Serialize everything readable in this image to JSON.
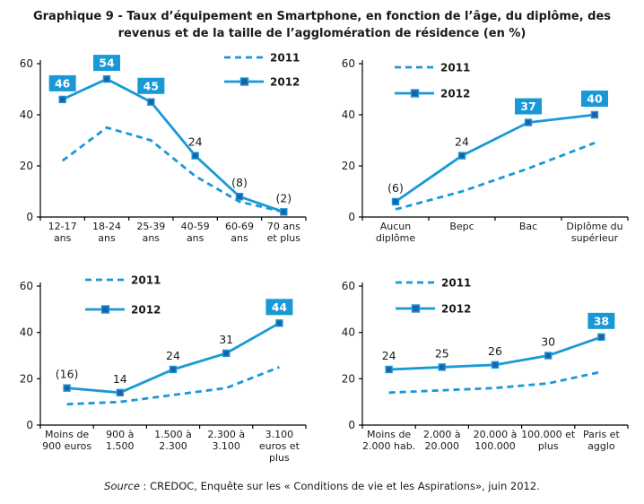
{
  "title": {
    "line1": "Graphique 9 - Taux d’équipement en Smartphone, en fonction de l’âge, du diplôme, des",
    "line2": "revenus et de la taille de l’agglomération de résidence (en %)"
  },
  "source": {
    "label": "Source",
    "text": " : CREDOC, Enquête sur les « Conditions de vie et les Aspirations», juin 2012."
  },
  "colors": {
    "accent": "#1899d6",
    "marker_fill": "#1f5fa8",
    "box_text": "#ffffff",
    "axis": "#000000",
    "text": "#1a1a1a"
  },
  "legend_labels": [
    "2011",
    "2012"
  ],
  "chart_data": [
    {
      "type": "line",
      "id": "age",
      "title": "",
      "xlabel": "",
      "ylabel": "",
      "ylim": [
        0,
        60
      ],
      "yticks": [
        0,
        20,
        40,
        60
      ],
      "grid": false,
      "legend_position": "top-right",
      "categories": [
        [
          "12-17",
          "ans"
        ],
        [
          "18-24",
          "ans"
        ],
        [
          "25-39",
          "ans"
        ],
        [
          "40-59",
          "ans"
        ],
        [
          "60-69",
          "ans"
        ],
        [
          "70 ans",
          "et plus"
        ]
      ],
      "series": [
        {
          "name": "2011",
          "style": "dashed",
          "values": [
            22,
            35,
            30,
            16,
            6,
            2
          ]
        },
        {
          "name": "2012",
          "style": "solid-square",
          "values": [
            46,
            54,
            45,
            24,
            8,
            2
          ],
          "point_labels": [
            {
              "text": "46",
              "boxed": true
            },
            {
              "text": "54",
              "boxed": true
            },
            {
              "text": "45",
              "boxed": true
            },
            {
              "text": "24",
              "boxed": false
            },
            {
              "text": "(8)",
              "boxed": false
            },
            {
              "text": "(2)",
              "boxed": false
            }
          ]
        }
      ]
    },
    {
      "type": "line",
      "id": "diplome",
      "title": "",
      "xlabel": "",
      "ylabel": "",
      "ylim": [
        0,
        60
      ],
      "yticks": [
        0,
        20,
        40,
        60
      ],
      "grid": false,
      "legend_position": "top-left",
      "categories": [
        [
          "Aucun",
          "diplôme"
        ],
        [
          "Bepc"
        ],
        [
          "Bac"
        ],
        [
          "Diplôme du",
          "supérieur"
        ]
      ],
      "series": [
        {
          "name": "2011",
          "style": "dashed",
          "values": [
            3,
            10,
            19,
            29
          ]
        },
        {
          "name": "2012",
          "style": "solid-square",
          "values": [
            6,
            24,
            37,
            40
          ],
          "point_labels": [
            {
              "text": "(6)",
              "boxed": false
            },
            {
              "text": "24",
              "boxed": false
            },
            {
              "text": "37",
              "boxed": true
            },
            {
              "text": "40",
              "boxed": true
            }
          ]
        }
      ]
    },
    {
      "type": "line",
      "id": "revenus",
      "title": "",
      "xlabel": "",
      "ylabel": "",
      "ylim": [
        0,
        60
      ],
      "yticks": [
        0,
        20,
        40,
        60
      ],
      "grid": false,
      "legend_position": "top-left",
      "categories": [
        [
          "Moins de",
          "900 euros"
        ],
        [
          "900 à",
          "1.500"
        ],
        [
          "1.500 à",
          "2.300"
        ],
        [
          "2.300 à",
          "3.100"
        ],
        [
          "3.100",
          "euros et",
          "plus"
        ]
      ],
      "series": [
        {
          "name": "2011",
          "style": "dashed",
          "values": [
            9,
            10,
            13,
            16,
            25
          ]
        },
        {
          "name": "2012",
          "style": "solid-square",
          "values": [
            16,
            14,
            24,
            31,
            44
          ],
          "point_labels": [
            {
              "text": "(16)",
              "boxed": false
            },
            {
              "text": "14",
              "boxed": false
            },
            {
              "text": "24",
              "boxed": false
            },
            {
              "text": "31",
              "boxed": false
            },
            {
              "text": "44",
              "boxed": true
            }
          ]
        }
      ]
    },
    {
      "type": "line",
      "id": "agglomeration",
      "title": "",
      "xlabel": "",
      "ylabel": "",
      "ylim": [
        0,
        60
      ],
      "yticks": [
        0,
        20,
        40,
        60
      ],
      "grid": false,
      "legend_position": "top-left",
      "categories": [
        [
          "Moins de",
          "2.000 hab."
        ],
        [
          "2.000 à",
          "20.000"
        ],
        [
          "20.000 à",
          "100.000"
        ],
        [
          "100.000 et",
          "plus"
        ],
        [
          "Paris et",
          "agglo"
        ]
      ],
      "series": [
        {
          "name": "2011",
          "style": "dashed",
          "values": [
            14,
            15,
            16,
            18,
            23
          ]
        },
        {
          "name": "2012",
          "style": "solid-square",
          "values": [
            24,
            25,
            26,
            30,
            38
          ],
          "point_labels": [
            {
              "text": "24",
              "boxed": false
            },
            {
              "text": "25",
              "boxed": false
            },
            {
              "text": "26",
              "boxed": false
            },
            {
              "text": "30",
              "boxed": false
            },
            {
              "text": "38",
              "boxed": true
            }
          ]
        }
      ]
    }
  ]
}
